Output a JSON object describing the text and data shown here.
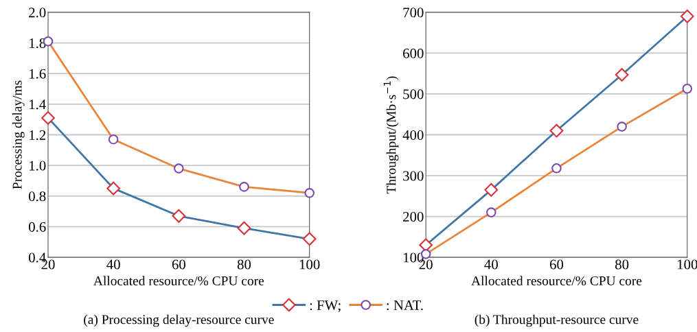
{
  "chart_data": [
    {
      "type": "line",
      "title": "(a) Processing delay-resource curve",
      "xlabel": "Allocated resource/% CPU core",
      "ylabel": "Processing delay/ms",
      "x": [
        20,
        40,
        60,
        80,
        100
      ],
      "xlim": [
        20,
        100
      ],
      "xticks": [
        20,
        40,
        60,
        80,
        100
      ],
      "ylim": [
        0.4,
        2.0
      ],
      "yticks": [
        0.4,
        0.6,
        0.8,
        {
          "value": 1,
          "label": "1.0"
        },
        1.2,
        1.4,
        1.6,
        1.8,
        {
          "value": 2,
          "label": "2.0"
        }
      ],
      "grid": "y",
      "legend": "bottom",
      "series": [
        {
          "name": ": FW;",
          "color": "#3e76a8",
          "marker": "diamond",
          "values": [
            1.31,
            0.85,
            0.67,
            0.59,
            0.52
          ]
        },
        {
          "name": ": NAT.",
          "color": "#e9853a",
          "marker": "circle",
          "values": [
            1.81,
            1.17,
            0.98,
            0.86,
            0.82
          ]
        }
      ]
    },
    {
      "type": "line",
      "title": "(b) Throughput-resource curve",
      "xlabel": "Allocated resource/% CPU core",
      "ylabel": "Throughput/(Mb·s$^{−1}$)",
      "x": [
        20,
        40,
        60,
        80,
        100
      ],
      "xlim": [
        20,
        100
      ],
      "xticks": [
        20,
        40,
        60,
        80,
        100
      ],
      "ylim": [
        100,
        700
      ],
      "yticks": [
        100,
        200,
        300,
        400,
        500,
        600,
        700
      ],
      "grid": "y",
      "series": [
        {
          "color": "#3e76a8",
          "marker": "diamond",
          "values": [
            130,
            265,
            410,
            547,
            690
          ]
        },
        {
          "color": "#e9853a",
          "marker": "circle",
          "values": [
            108,
            210,
            318,
            420,
            513
          ]
        }
      ]
    }
  ]
}
